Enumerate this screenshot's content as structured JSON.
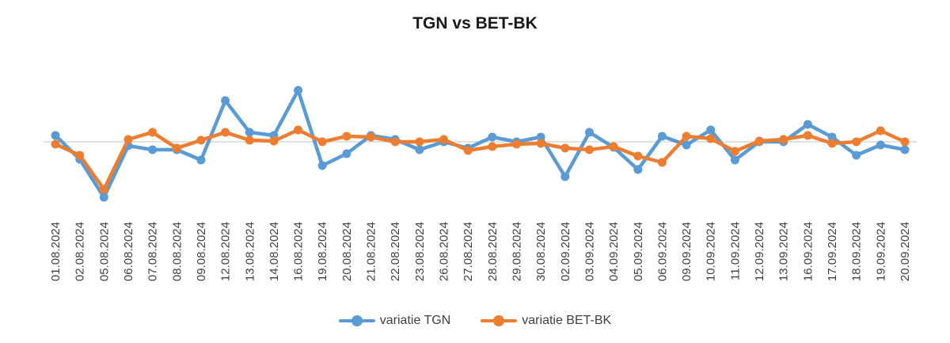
{
  "chart_data": {
    "type": "line",
    "title": "TGN vs BET-BK",
    "xlabel": "",
    "ylabel": "",
    "ylim": [
      -1.0,
      1.0
    ],
    "grid": false,
    "legend_position": "bottom",
    "categories": [
      "01.08.2024",
      "02.08.2024",
      "05.08.2024",
      "06.08.2024",
      "07.08.2024",
      "08.08.2024",
      "09.08.2024",
      "12.08.2024",
      "13.08.2024",
      "14.08.2024",
      "16.08.2024",
      "19.08.2024",
      "20.08.2024",
      "21.08.2024",
      "22.08.2024",
      "23.08.2024",
      "26.08.2024",
      "27.08.2024",
      "28.08.2024",
      "29.08.2024",
      "30.08.2024",
      "02.09.2024",
      "03.09.2024",
      "04.09.2024",
      "05.09.2024",
      "06.09.2024",
      "09.09.2024",
      "10.09.2024",
      "11.09.2024",
      "12.09.2024",
      "13.09.2024",
      "16.09.2024",
      "17.09.2024",
      "18.09.2024",
      "19.09.2024",
      "20.09.2024"
    ],
    "series": [
      {
        "name": "variatie TGN",
        "color": "#5b9bd5",
        "values": [
          0.08,
          -0.22,
          -0.7,
          -0.05,
          -0.1,
          -0.1,
          -0.23,
          0.52,
          0.12,
          0.08,
          0.65,
          -0.3,
          -0.15,
          0.08,
          0.03,
          -0.1,
          0.0,
          -0.08,
          0.06,
          0.0,
          0.06,
          -0.44,
          0.12,
          -0.07,
          -0.35,
          0.07,
          -0.04,
          0.15,
          -0.23,
          0.0,
          0.0,
          0.22,
          0.06,
          -0.17,
          -0.04,
          -0.1
        ]
      },
      {
        "name": "variatie BET-BK",
        "color": "#ed7d31",
        "values": [
          -0.03,
          -0.17,
          -0.6,
          0.03,
          0.12,
          -0.08,
          0.02,
          0.12,
          0.02,
          0.01,
          0.15,
          0.0,
          0.07,
          0.06,
          0.0,
          0.0,
          0.03,
          -0.11,
          -0.06,
          -0.03,
          -0.02,
          -0.08,
          -0.1,
          -0.06,
          -0.18,
          -0.26,
          0.07,
          0.04,
          -0.12,
          0.01,
          0.03,
          0.08,
          -0.02,
          0.0,
          0.14,
          0.0
        ]
      }
    ]
  }
}
